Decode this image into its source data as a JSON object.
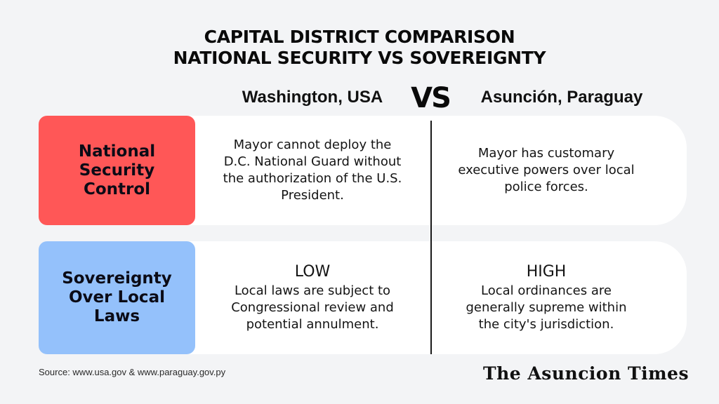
{
  "title": {
    "line1": "CAPITAL DISTRICT COMPARISON",
    "line2": "NATIONAL SECURITY VS SOVEREIGNTY"
  },
  "columns": {
    "left": "Washington, USA",
    "vs": "VS",
    "right": "Asunción, Paraguay"
  },
  "rows": [
    {
      "label_lines": [
        "National",
        "Security",
        "Control"
      ],
      "label_color": "#ff5757",
      "left": {
        "level": "",
        "lines": [
          "Mayor cannot deploy the",
          "D.C. National Guard without",
          "the authorization of the U.S.",
          "President."
        ]
      },
      "right": {
        "level": "",
        "lines": [
          "Mayor has customary",
          "executive powers over local",
          "police forces."
        ]
      }
    },
    {
      "label_lines": [
        "Sovereignty",
        "Over Local",
        "Laws"
      ],
      "label_color": "#94c1fb",
      "left": {
        "level": "LOW",
        "lines": [
          "Local laws are subject to",
          "Congressional review and",
          "potential annulment."
        ]
      },
      "right": {
        "level": "HIGH",
        "lines": [
          "Local ordinances are",
          "generally supreme within",
          "the city's jurisdiction."
        ]
      }
    }
  ],
  "footer": {
    "source": "Source: www.usa.gov & www.paraguay.gov.py",
    "brand": "The Asuncion Times"
  },
  "colors": {
    "background": "#f3f4f6",
    "card": "#ffffff",
    "security_label": "#ff5757",
    "sovereignty_label": "#94c1fb",
    "divider": "#1a1a1a"
  }
}
